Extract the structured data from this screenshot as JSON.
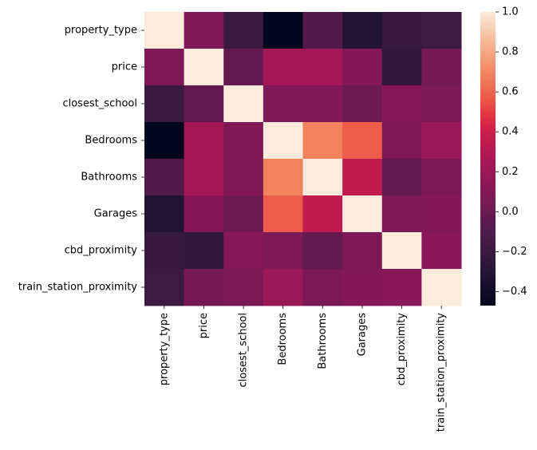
{
  "chart_data": {
    "type": "heatmap",
    "title": "",
    "xlabel": "",
    "ylabel": "",
    "rows": [
      "property_type",
      "price",
      "closest_school",
      "Bedrooms",
      "Bathrooms",
      "Garages",
      "cbd_proximity",
      "train_station_proximity"
    ],
    "columns": [
      "property_type",
      "price",
      "closest_school",
      "Bedrooms",
      "Bathrooms",
      "Garages",
      "cbd_proximity",
      "train_station_proximity"
    ],
    "values": [
      [
        1.0,
        0.09,
        -0.2,
        -0.47,
        -0.1,
        -0.32,
        -0.22,
        -0.19
      ],
      [
        0.09,
        1.0,
        -0.03,
        0.24,
        0.24,
        0.1,
        -0.24,
        0.04
      ],
      [
        -0.2,
        -0.03,
        1.0,
        0.09,
        0.09,
        0.01,
        0.12,
        0.07
      ],
      [
        -0.47,
        0.24,
        0.09,
        1.0,
        0.68,
        0.58,
        0.08,
        0.2
      ],
      [
        -0.1,
        0.24,
        0.09,
        0.68,
        1.0,
        0.35,
        -0.03,
        0.07
      ],
      [
        -0.32,
        0.1,
        0.01,
        0.58,
        0.35,
        1.0,
        0.08,
        0.1
      ],
      [
        -0.22,
        -0.24,
        0.12,
        0.08,
        -0.03,
        0.08,
        1.0,
        0.13
      ],
      [
        -0.19,
        0.04,
        0.07,
        0.2,
        0.07,
        0.1,
        0.13,
        1.0
      ]
    ],
    "colorbar": {
      "vmin": -0.47,
      "vmax": 1.0,
      "ticks": [
        -0.4,
        -0.2,
        0.0,
        0.2,
        0.4,
        0.6,
        0.8,
        1.0
      ],
      "tick_labels": [
        "−0.4",
        "−0.2",
        "0.0",
        "0.2",
        "0.4",
        "0.6",
        "0.8",
        "1.0"
      ],
      "colormap": "rocket"
    }
  }
}
